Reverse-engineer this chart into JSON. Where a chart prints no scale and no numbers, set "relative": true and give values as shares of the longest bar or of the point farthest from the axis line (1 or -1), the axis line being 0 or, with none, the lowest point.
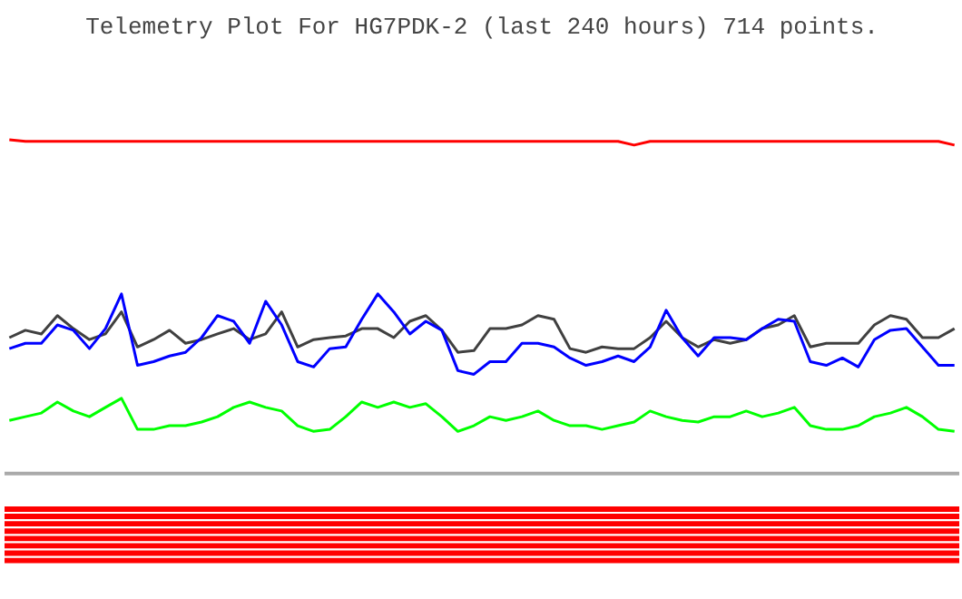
{
  "chart_data": {
    "type": "line",
    "title": "Telemetry Plot For HG7PDK-2 (last 240 hours) 714 points.",
    "relative": true,
    "grid": false,
    "categories": [
      null,
      null,
      null,
      null,
      null,
      null,
      null,
      null,
      null,
      null,
      null,
      null,
      null,
      null,
      null,
      null,
      null,
      null,
      null,
      null,
      null,
      null,
      null,
      null,
      null,
      null,
      null,
      null,
      null,
      null,
      null,
      null,
      null,
      null,
      null,
      null,
      null,
      null,
      null,
      null,
      null,
      null,
      null,
      null,
      null,
      null,
      null,
      null,
      null,
      null,
      null,
      null,
      null,
      null,
      null,
      null,
      null,
      null,
      null,
      null
    ],
    "series": [
      {
        "color": "#ff0000",
        "values": [
          1.0,
          0.995,
          0.995,
          0.995,
          0.995,
          0.995,
          0.995,
          0.995,
          0.995,
          0.995,
          0.995,
          0.995,
          0.995,
          0.995,
          0.995,
          0.995,
          0.995,
          0.995,
          0.995,
          0.995,
          0.995,
          0.995,
          0.995,
          0.995,
          0.995,
          0.995,
          0.995,
          0.995,
          0.995,
          0.995,
          0.995,
          0.995,
          0.995,
          0.995,
          0.995,
          0.995,
          0.995,
          0.995,
          0.995,
          0.984,
          0.995,
          0.995,
          0.995,
          0.995,
          0.995,
          0.995,
          0.995,
          0.995,
          0.995,
          0.995,
          0.995,
          0.995,
          0.995,
          0.995,
          0.995,
          0.995,
          0.995,
          0.995,
          0.995,
          0.984
        ]
      },
      {
        "color": "#404040",
        "values": [
          0.407,
          0.429,
          0.418,
          0.473,
          0.434,
          0.401,
          0.418,
          0.484,
          0.379,
          0.401,
          0.429,
          0.39,
          0.401,
          0.418,
          0.434,
          0.401,
          0.418,
          0.484,
          0.379,
          0.401,
          0.407,
          0.412,
          0.434,
          0.434,
          0.407,
          0.456,
          0.473,
          0.429,
          0.363,
          0.368,
          0.434,
          0.434,
          0.445,
          0.473,
          0.462,
          0.374,
          0.363,
          0.379,
          0.374,
          0.374,
          0.407,
          0.456,
          0.407,
          0.379,
          0.401,
          0.39,
          0.401,
          0.434,
          0.445,
          0.473,
          0.379,
          0.39,
          0.39,
          0.39,
          0.445,
          0.473,
          0.462,
          0.407,
          0.407,
          0.434
        ]
      },
      {
        "color": "#0000ff",
        "values": [
          0.374,
          0.39,
          0.39,
          0.445,
          0.429,
          0.374,
          0.434,
          0.538,
          0.324,
          0.335,
          0.352,
          0.363,
          0.407,
          0.473,
          0.456,
          0.39,
          0.516,
          0.445,
          0.335,
          0.319,
          0.374,
          0.379,
          0.462,
          0.538,
          0.484,
          0.418,
          0.456,
          0.429,
          0.308,
          0.297,
          0.335,
          0.335,
          0.39,
          0.39,
          0.379,
          0.346,
          0.324,
          0.335,
          0.352,
          0.335,
          0.379,
          0.489,
          0.407,
          0.352,
          0.407,
          0.407,
          0.401,
          0.434,
          0.462,
          0.456,
          0.335,
          0.324,
          0.346,
          0.319,
          0.401,
          0.429,
          0.434,
          0.379,
          0.324,
          0.324
        ]
      },
      {
        "color": "#00ff00",
        "values": [
          0.159,
          0.17,
          0.181,
          0.214,
          0.187,
          0.17,
          0.198,
          0.225,
          0.132,
          0.132,
          0.143,
          0.143,
          0.154,
          0.17,
          0.198,
          0.214,
          0.198,
          0.187,
          0.143,
          0.126,
          0.132,
          0.17,
          0.214,
          0.198,
          0.214,
          0.198,
          0.209,
          0.17,
          0.126,
          0.143,
          0.17,
          0.159,
          0.17,
          0.187,
          0.159,
          0.143,
          0.143,
          0.132,
          0.143,
          0.154,
          0.187,
          0.17,
          0.159,
          0.154,
          0.17,
          0.17,
          0.187,
          0.17,
          0.181,
          0.198,
          0.143,
          0.132,
          0.132,
          0.143,
          0.17,
          0.181,
          0.198,
          0.17,
          0.132,
          0.126
        ]
      }
    ],
    "bands": [
      {
        "axis": "y",
        "from": -0.099,
        "to": -0.115,
        "color": "#ff0000"
      },
      {
        "axis": "y",
        "from": -0.121,
        "to": -0.137,
        "color": "#ff0000"
      },
      {
        "axis": "y",
        "from": -0.143,
        "to": -0.159,
        "color": "#ff0000"
      },
      {
        "axis": "y",
        "from": -0.165,
        "to": -0.181,
        "color": "#ff0000"
      },
      {
        "axis": "y",
        "from": -0.187,
        "to": -0.203,
        "color": "#ff0000"
      },
      {
        "axis": "y",
        "from": -0.209,
        "to": -0.225,
        "color": "#ff0000"
      },
      {
        "axis": "y",
        "from": -0.231,
        "to": -0.247,
        "color": "#ff0000"
      },
      {
        "axis": "y",
        "from": -0.253,
        "to": -0.269,
        "color": "#ff0000"
      }
    ]
  }
}
